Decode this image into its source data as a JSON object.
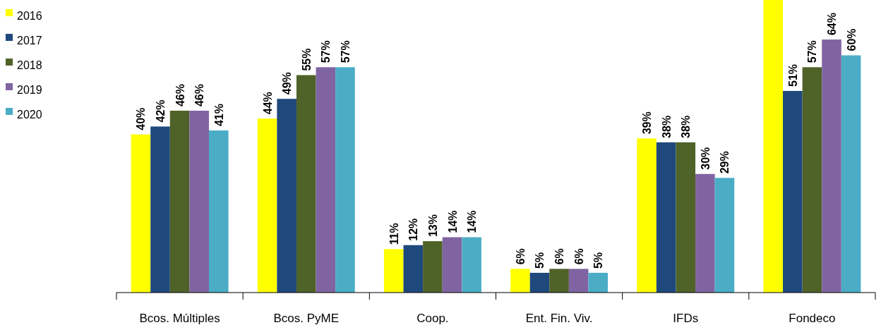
{
  "chart_data": {
    "type": "bar",
    "categories": [
      "Bcos. Múltiples",
      "Bcos. PyME",
      "Coop.",
      "Ent. Fin. Viv.",
      "IFDs",
      "Fondeco"
    ],
    "series": [
      {
        "name": "2016",
        "color": "#ffff00",
        "values": [
          40,
          44,
          11,
          6,
          39,
          74
        ],
        "value_labels": [
          "40%",
          "44%",
          "11%",
          "6%",
          "39%",
          null
        ]
      },
      {
        "name": "2017",
        "color": "#1f497d",
        "values": [
          42,
          49,
          12,
          5,
          38,
          51
        ],
        "value_labels": [
          "42%",
          "49%",
          "12%",
          "5%",
          "38%",
          "51%"
        ]
      },
      {
        "name": "2018",
        "color": "#4f6228",
        "values": [
          46,
          55,
          13,
          6,
          38,
          57
        ],
        "value_labels": [
          "46%",
          "55%",
          "13%",
          "6%",
          "38%",
          "57%"
        ]
      },
      {
        "name": "2019",
        "color": "#8064a2",
        "values": [
          46,
          57,
          14,
          6,
          30,
          64
        ],
        "value_labels": [
          "46%",
          "57%",
          "14%",
          "6%",
          "30%",
          "64%"
        ]
      },
      {
        "name": "2020",
        "color": "#4bacc6",
        "values": [
          41,
          57,
          14,
          5,
          29,
          60
        ],
        "value_labels": [
          "41%",
          "57%",
          "14%",
          "5%",
          "29%",
          "60%"
        ]
      }
    ],
    "legend": "top left"
  }
}
